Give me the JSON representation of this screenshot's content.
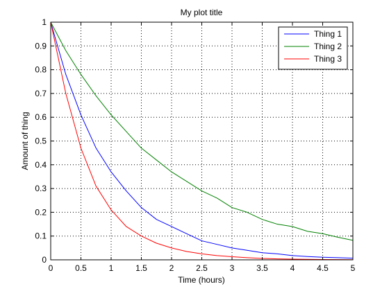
{
  "chart_data": {
    "type": "line",
    "title": "My plot title",
    "xlabel": "Time (hours)",
    "ylabel": "Amount of thing",
    "xlim": [
      0,
      5
    ],
    "ylim": [
      0,
      1
    ],
    "x_ticks": [
      0,
      0.5,
      1,
      1.5,
      2,
      2.5,
      3,
      3.5,
      4,
      4.5,
      5
    ],
    "x_tick_labels": [
      "0",
      "0.5",
      "1",
      "1.5",
      "2",
      "2.5",
      "3",
      "3.5",
      "4",
      "4.5",
      "5"
    ],
    "y_ticks": [
      0,
      0.1,
      0.2,
      0.3,
      0.4,
      0.5,
      0.6,
      0.7,
      0.8,
      0.9,
      1
    ],
    "y_tick_labels": [
      "0",
      "0.1",
      "0.2",
      "0.3",
      "0.4",
      "0.5",
      "0.6",
      "0.7",
      "0.8",
      "0.9",
      "1"
    ],
    "grid": true,
    "legend_position": "top-right",
    "x": [
      0,
      0.25,
      0.5,
      0.75,
      1,
      1.25,
      1.5,
      1.75,
      2,
      2.25,
      2.5,
      2.75,
      3,
      3.25,
      3.5,
      3.75,
      4,
      4.25,
      4.5,
      4.75,
      5
    ],
    "series": [
      {
        "name": "Thing 1",
        "color": "#0000ff",
        "values": [
          1,
          0.78,
          0.61,
          0.47,
          0.37,
          0.29,
          0.22,
          0.17,
          0.14,
          0.11,
          0.08,
          0.065,
          0.05,
          0.04,
          0.03,
          0.025,
          0.018,
          0.014,
          0.011,
          0.009,
          0.007
        ]
      },
      {
        "name": "Thing 2",
        "color": "#008000",
        "values": [
          1,
          0.88,
          0.78,
          0.69,
          0.61,
          0.54,
          0.47,
          0.42,
          0.37,
          0.33,
          0.29,
          0.26,
          0.22,
          0.2,
          0.17,
          0.15,
          0.14,
          0.12,
          0.11,
          0.095,
          0.082
        ]
      },
      {
        "name": "Thing 3",
        "color": "#ff0000",
        "values": [
          1,
          0.7,
          0.47,
          0.31,
          0.21,
          0.14,
          0.1,
          0.07,
          0.05,
          0.035,
          0.025,
          0.018,
          0.013,
          0.009,
          0.006,
          0.004,
          0.003,
          0.002,
          0.0015,
          0.001,
          0.0007
        ]
      }
    ]
  }
}
